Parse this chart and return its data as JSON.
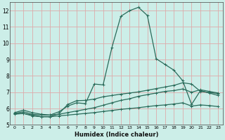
{
  "xlabel": "Humidex (Indice chaleur)",
  "ylabel": "",
  "bg_color": "#cceee8",
  "grid_color": "#ddaaaa",
  "line_color": "#2a6b5a",
  "xlim": [
    -0.5,
    23.5
  ],
  "ylim": [
    5,
    12.5
  ],
  "xticks": [
    0,
    1,
    2,
    3,
    4,
    5,
    6,
    7,
    8,
    9,
    10,
    11,
    12,
    13,
    14,
    15,
    16,
    17,
    18,
    19,
    20,
    21,
    22,
    23
  ],
  "yticks": [
    5,
    6,
    7,
    8,
    9,
    10,
    11,
    12
  ],
  "line1_x": [
    0,
    1,
    2,
    3,
    4,
    5,
    6,
    7,
    8,
    9,
    10,
    11,
    12,
    13,
    14,
    15,
    16,
    17,
    18,
    19,
    20,
    21,
    22,
    23
  ],
  "line1_y": [
    5.75,
    5.9,
    5.75,
    5.65,
    5.6,
    5.8,
    6.15,
    6.35,
    6.3,
    7.5,
    7.45,
    9.75,
    11.65,
    12.0,
    12.2,
    11.7,
    9.05,
    8.7,
    8.35,
    7.7,
    6.25,
    7.1,
    6.95,
    6.8
  ],
  "line2_x": [
    0,
    1,
    2,
    3,
    4,
    5,
    6,
    7,
    8,
    9,
    10,
    11,
    12,
    13,
    14,
    15,
    16,
    17,
    18,
    19,
    20,
    21,
    22,
    23
  ],
  "line2_y": [
    5.7,
    5.8,
    5.65,
    5.6,
    5.6,
    5.65,
    5.75,
    5.85,
    5.95,
    6.05,
    6.2,
    6.35,
    6.5,
    6.6,
    6.75,
    6.85,
    6.95,
    7.05,
    7.1,
    7.2,
    7.0,
    7.15,
    7.05,
    6.95
  ],
  "line3_x": [
    0,
    1,
    2,
    3,
    4,
    5,
    6,
    7,
    8,
    9,
    10,
    11,
    12,
    13,
    14,
    15,
    16,
    17,
    18,
    19,
    20,
    21,
    22,
    23
  ],
  "line3_y": [
    5.65,
    5.7,
    5.6,
    5.5,
    5.5,
    5.55,
    5.6,
    5.65,
    5.7,
    5.75,
    5.82,
    5.88,
    5.95,
    6.0,
    6.05,
    6.12,
    6.18,
    6.22,
    6.28,
    6.35,
    6.15,
    6.22,
    6.18,
    6.12
  ],
  "line4_x": [
    0,
    1,
    2,
    3,
    4,
    5,
    6,
    7,
    8,
    9,
    10,
    11,
    12,
    13,
    14,
    15,
    16,
    17,
    18,
    19,
    20,
    21,
    22,
    23
  ],
  "line4_y": [
    5.7,
    5.7,
    5.55,
    5.5,
    5.5,
    5.68,
    6.25,
    6.48,
    6.5,
    6.58,
    6.72,
    6.8,
    6.88,
    6.95,
    7.02,
    7.12,
    7.22,
    7.32,
    7.42,
    7.58,
    7.5,
    7.05,
    6.98,
    6.92
  ]
}
